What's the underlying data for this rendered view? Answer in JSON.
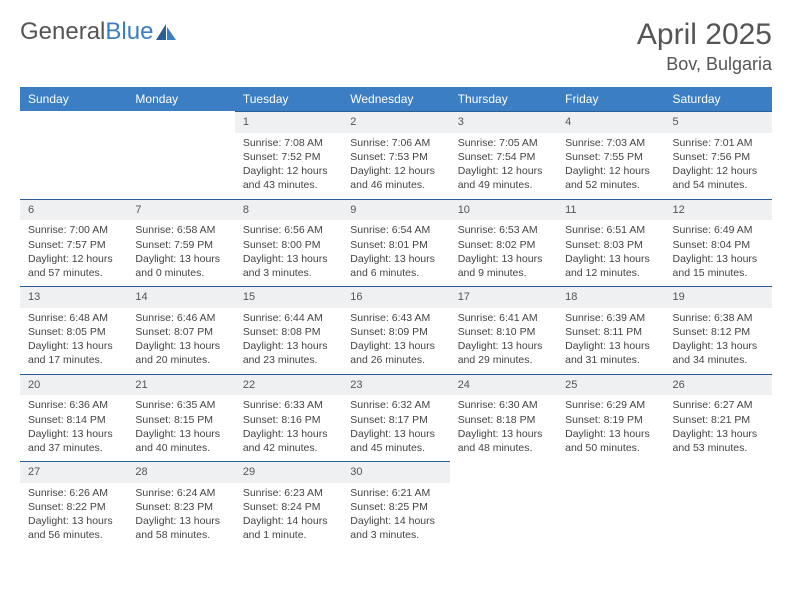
{
  "brand": {
    "part1": "General",
    "part2": "Blue"
  },
  "title": {
    "monthYear": "April 2025",
    "location": "Bov, Bulgaria"
  },
  "colors": {
    "headerBg": "#3b7ec4",
    "dayBarBg": "#eef0f2",
    "rowBorder": "#2a5e94",
    "text": "#444"
  },
  "weekdays": [
    "Sunday",
    "Monday",
    "Tuesday",
    "Wednesday",
    "Thursday",
    "Friday",
    "Saturday"
  ],
  "weeks": [
    [
      null,
      null,
      {
        "n": "1",
        "sr": "7:08 AM",
        "ss": "7:52 PM",
        "dl": "12 hours and 43 minutes."
      },
      {
        "n": "2",
        "sr": "7:06 AM",
        "ss": "7:53 PM",
        "dl": "12 hours and 46 minutes."
      },
      {
        "n": "3",
        "sr": "7:05 AM",
        "ss": "7:54 PM",
        "dl": "12 hours and 49 minutes."
      },
      {
        "n": "4",
        "sr": "7:03 AM",
        "ss": "7:55 PM",
        "dl": "12 hours and 52 minutes."
      },
      {
        "n": "5",
        "sr": "7:01 AM",
        "ss": "7:56 PM",
        "dl": "12 hours and 54 minutes."
      }
    ],
    [
      {
        "n": "6",
        "sr": "7:00 AM",
        "ss": "7:57 PM",
        "dl": "12 hours and 57 minutes."
      },
      {
        "n": "7",
        "sr": "6:58 AM",
        "ss": "7:59 PM",
        "dl": "13 hours and 0 minutes."
      },
      {
        "n": "8",
        "sr": "6:56 AM",
        "ss": "8:00 PM",
        "dl": "13 hours and 3 minutes."
      },
      {
        "n": "9",
        "sr": "6:54 AM",
        "ss": "8:01 PM",
        "dl": "13 hours and 6 minutes."
      },
      {
        "n": "10",
        "sr": "6:53 AM",
        "ss": "8:02 PM",
        "dl": "13 hours and 9 minutes."
      },
      {
        "n": "11",
        "sr": "6:51 AM",
        "ss": "8:03 PM",
        "dl": "13 hours and 12 minutes."
      },
      {
        "n": "12",
        "sr": "6:49 AM",
        "ss": "8:04 PM",
        "dl": "13 hours and 15 minutes."
      }
    ],
    [
      {
        "n": "13",
        "sr": "6:48 AM",
        "ss": "8:05 PM",
        "dl": "13 hours and 17 minutes."
      },
      {
        "n": "14",
        "sr": "6:46 AM",
        "ss": "8:07 PM",
        "dl": "13 hours and 20 minutes."
      },
      {
        "n": "15",
        "sr": "6:44 AM",
        "ss": "8:08 PM",
        "dl": "13 hours and 23 minutes."
      },
      {
        "n": "16",
        "sr": "6:43 AM",
        "ss": "8:09 PM",
        "dl": "13 hours and 26 minutes."
      },
      {
        "n": "17",
        "sr": "6:41 AM",
        "ss": "8:10 PM",
        "dl": "13 hours and 29 minutes."
      },
      {
        "n": "18",
        "sr": "6:39 AM",
        "ss": "8:11 PM",
        "dl": "13 hours and 31 minutes."
      },
      {
        "n": "19",
        "sr": "6:38 AM",
        "ss": "8:12 PM",
        "dl": "13 hours and 34 minutes."
      }
    ],
    [
      {
        "n": "20",
        "sr": "6:36 AM",
        "ss": "8:14 PM",
        "dl": "13 hours and 37 minutes."
      },
      {
        "n": "21",
        "sr": "6:35 AM",
        "ss": "8:15 PM",
        "dl": "13 hours and 40 minutes."
      },
      {
        "n": "22",
        "sr": "6:33 AM",
        "ss": "8:16 PM",
        "dl": "13 hours and 42 minutes."
      },
      {
        "n": "23",
        "sr": "6:32 AM",
        "ss": "8:17 PM",
        "dl": "13 hours and 45 minutes."
      },
      {
        "n": "24",
        "sr": "6:30 AM",
        "ss": "8:18 PM",
        "dl": "13 hours and 48 minutes."
      },
      {
        "n": "25",
        "sr": "6:29 AM",
        "ss": "8:19 PM",
        "dl": "13 hours and 50 minutes."
      },
      {
        "n": "26",
        "sr": "6:27 AM",
        "ss": "8:21 PM",
        "dl": "13 hours and 53 minutes."
      }
    ],
    [
      {
        "n": "27",
        "sr": "6:26 AM",
        "ss": "8:22 PM",
        "dl": "13 hours and 56 minutes."
      },
      {
        "n": "28",
        "sr": "6:24 AM",
        "ss": "8:23 PM",
        "dl": "13 hours and 58 minutes."
      },
      {
        "n": "29",
        "sr": "6:23 AM",
        "ss": "8:24 PM",
        "dl": "14 hours and 1 minute."
      },
      {
        "n": "30",
        "sr": "6:21 AM",
        "ss": "8:25 PM",
        "dl": "14 hours and 3 minutes."
      },
      null,
      null,
      null
    ]
  ]
}
